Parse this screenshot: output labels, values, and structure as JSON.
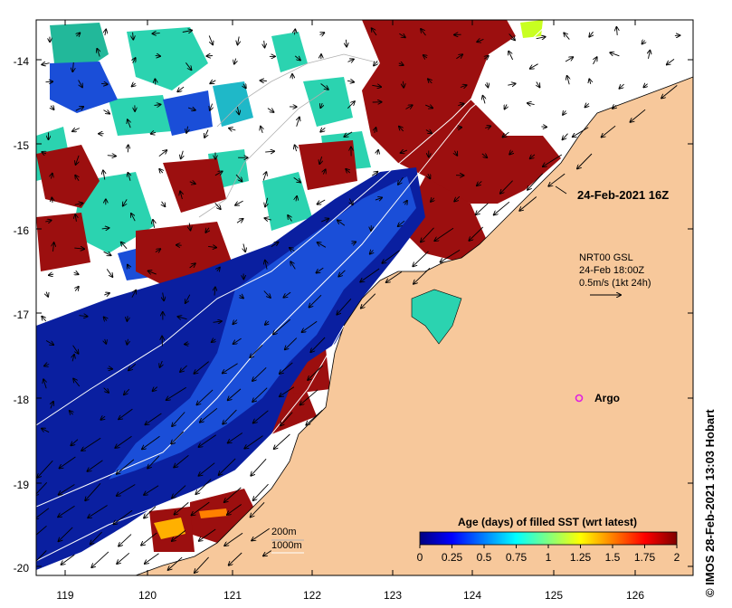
{
  "map": {
    "x_ticks": [
      "119",
      "120",
      "121",
      "122",
      "123",
      "124",
      "125",
      "126"
    ],
    "y_ticks": [
      "-14",
      "-15",
      "-16",
      "-17",
      "-18",
      "-19",
      "-20"
    ],
    "land_color": "#f7c89b",
    "colors": {
      "deep_blue": "#0a1fa0",
      "blue": "#1a4ed8",
      "cyan": "#22c6b8",
      "teal": "#2bd3b0",
      "red": "#9c0f0f",
      "white": "#ffffff"
    }
  },
  "annotations": {
    "timestamp": "24-Feb-2021 16Z",
    "current_line1": "NRT00 GSL",
    "current_line2": "24-Feb 18:00Z",
    "current_line3": "0.5m/s (1kt 24h)",
    "argo": "Argo",
    "depth_200": "200m",
    "depth_1000": "1000m"
  },
  "colorbar": {
    "title": "Age (days) of filled SST (wrt latest)",
    "tick_labels": [
      "0",
      "0.25",
      "0.5",
      "0.75",
      "1",
      "1.25",
      "1.5",
      "1.75",
      "2"
    ],
    "stops": [
      "#00007f",
      "#0000ff",
      "#0080ff",
      "#00ffff",
      "#80ff80",
      "#ffff00",
      "#ff8000",
      "#ff0000",
      "#7f0000"
    ]
  },
  "copyright": "© IMOS 28-Feb-2021 13:03 Hobart"
}
